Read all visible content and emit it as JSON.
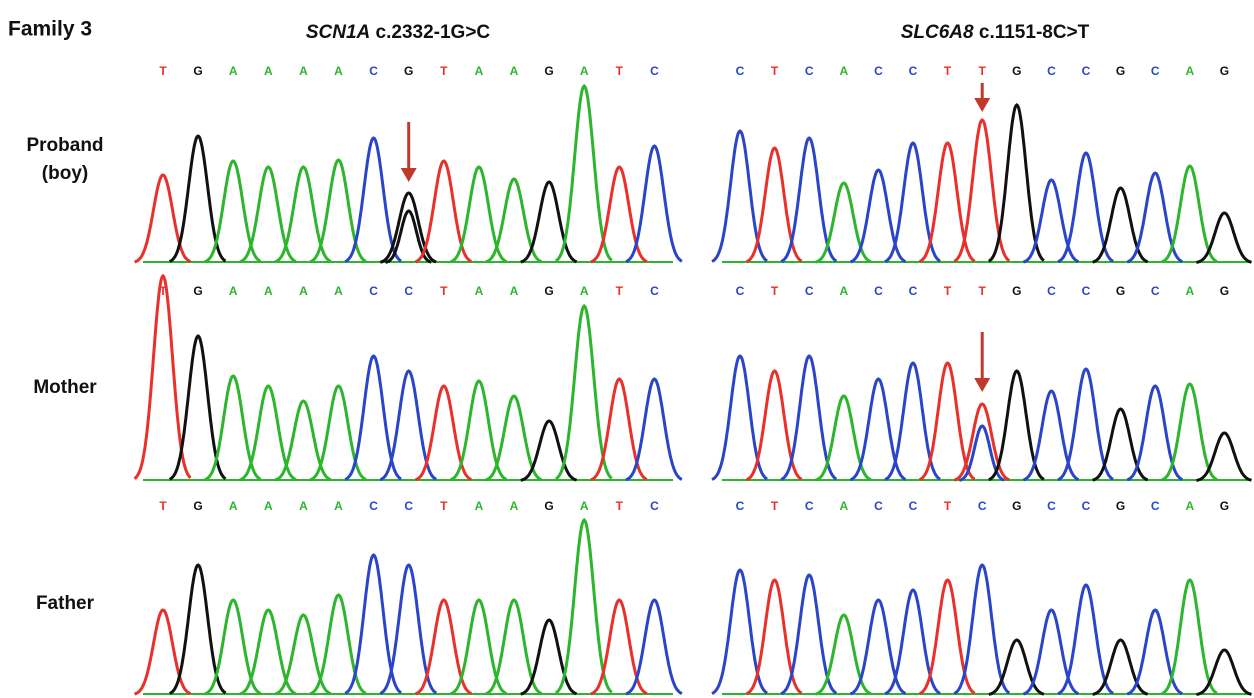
{
  "header": {
    "title": "Family 3"
  },
  "panels": [
    {
      "gene": "SCN1A",
      "variant": "c.2332-1G>C",
      "rows": [
        {
          "bases": [
            "T",
            "G",
            "A",
            "A",
            "A",
            "A",
            "C",
            "G",
            "T",
            "A",
            "A",
            "G",
            "A",
            "T",
            "C"
          ]
        },
        {
          "bases": [
            "T",
            "G",
            "A",
            "A",
            "A",
            "A",
            "C",
            "C",
            "T",
            "A",
            "A",
            "G",
            "A",
            "T",
            "C"
          ]
        },
        {
          "bases": [
            "T",
            "G",
            "A",
            "A",
            "A",
            "A",
            "C",
            "C",
            "T",
            "A",
            "A",
            "G",
            "A",
            "T",
            "C"
          ]
        }
      ]
    },
    {
      "gene": "SLC6A8",
      "variant": "c.1151-8C>T",
      "rows": [
        {
          "bases": [
            "C",
            "T",
            "C",
            "A",
            "C",
            "C",
            "T",
            "T",
            "G",
            "C",
            "C",
            "G",
            "C",
            "A",
            "G"
          ]
        },
        {
          "bases": [
            "C",
            "T",
            "C",
            "A",
            "C",
            "C",
            "T",
            "T",
            "G",
            "C",
            "C",
            "G",
            "C",
            "A",
            "G"
          ]
        },
        {
          "bases": [
            "C",
            "T",
            "C",
            "A",
            "C",
            "C",
            "T",
            "C",
            "G",
            "C",
            "C",
            "G",
            "C",
            "A",
            "G"
          ]
        }
      ]
    }
  ],
  "rows": [
    {
      "label": [
        "Proband",
        "(boy)"
      ]
    },
    {
      "label": [
        "Mother"
      ]
    },
    {
      "label": [
        "Father"
      ]
    }
  ]
}
